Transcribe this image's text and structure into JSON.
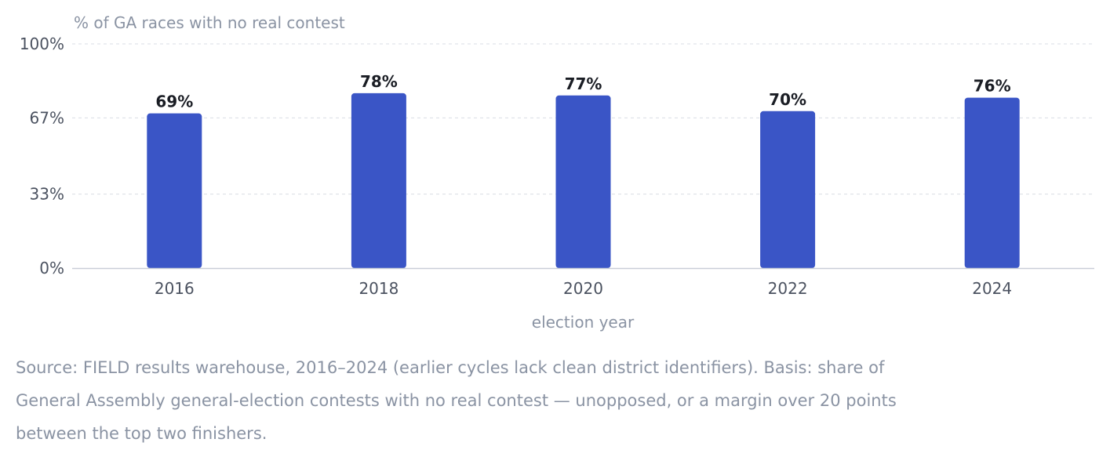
{
  "chart_data": {
    "type": "bar",
    "title": "",
    "ylabel": "% of GA races with no real contest",
    "xlabel": "election year",
    "categories": [
      "2016",
      "2018",
      "2020",
      "2022",
      "2024"
    ],
    "values": [
      69,
      78,
      77,
      70,
      76
    ],
    "data_labels": [
      "69%",
      "78%",
      "77%",
      "70%",
      "76%"
    ],
    "ylim": [
      0,
      100
    ],
    "yticks": [
      0,
      33,
      67,
      100
    ],
    "ytick_labels": [
      "0%",
      "33%",
      "67%",
      "100%"
    ],
    "grid": true,
    "bar_color": "#3a55c6"
  },
  "source_note": "Source: FIELD results warehouse, 2016–2024 (earlier cycles lack clean district identifiers). Basis: share of General Assembly general-election contests with no real contest — unopposed, or a margin over 20 points between the top two finishers."
}
